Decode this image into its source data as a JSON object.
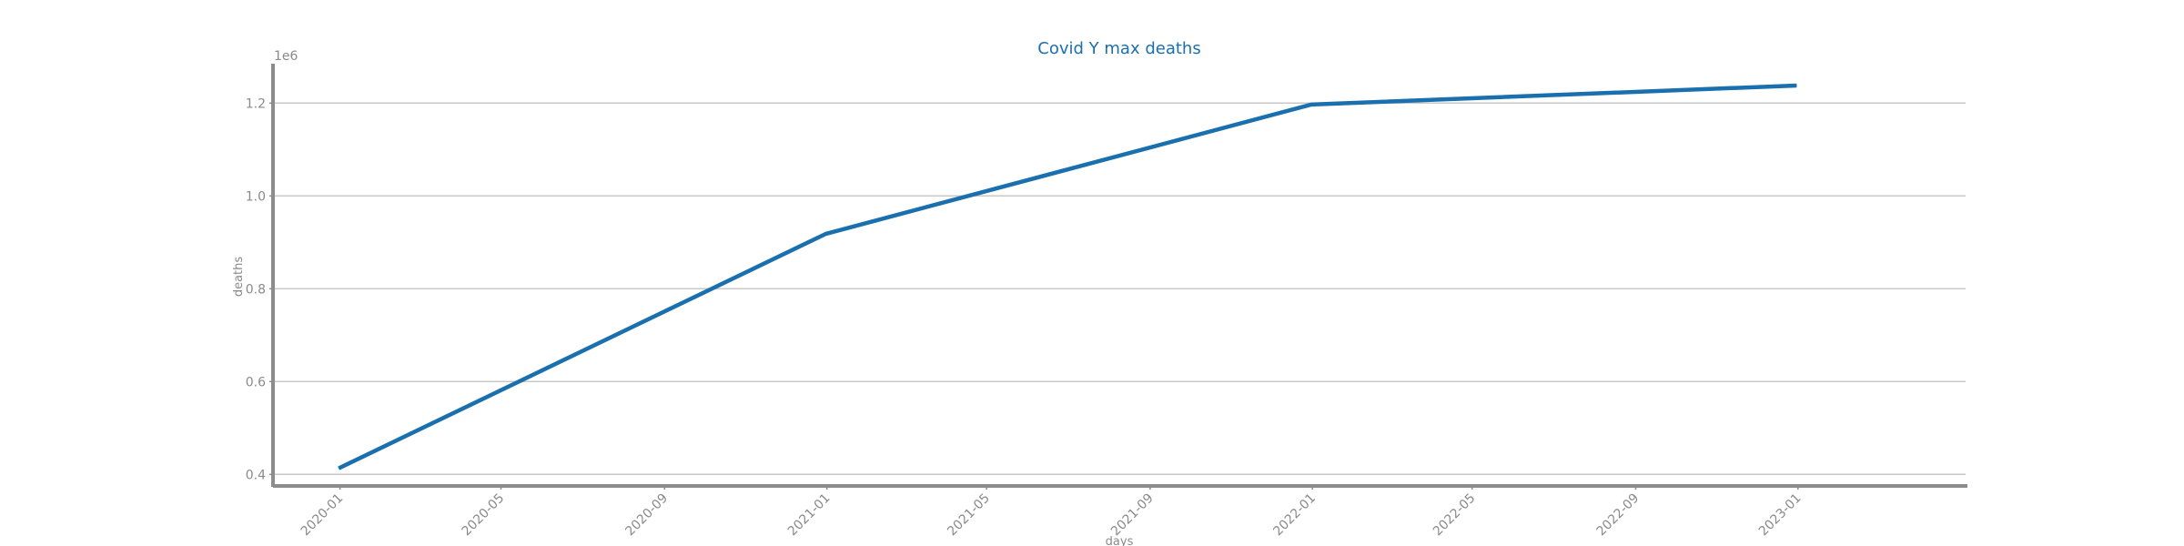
{
  "chart_data": {
    "type": "line",
    "title": "Covid Y max deaths",
    "xlabel": "days",
    "ylabel": "deaths",
    "y_offset_label": "1e6",
    "x_tick_labels": [
      "2020-01",
      "2020-05",
      "2020-09",
      "2021-01",
      "2021-05",
      "2021-09",
      "2022-01",
      "2022-05",
      "2022-09",
      "2023-01"
    ],
    "y_tick_labels": [
      "0.4",
      "0.6",
      "0.8",
      "1.0",
      "1.2"
    ],
    "y_ticks": [
      0.4,
      0.6,
      0.8,
      1.0,
      1.2
    ],
    "x_range": [
      "2019-11-13",
      "2023-05-07"
    ],
    "ylim": [
      0.375,
      1.285
    ],
    "grid": "horizontal",
    "series": [
      {
        "color": "#1a6fae",
        "points": [
          {
            "x": "2019-12-31",
            "y": 0.413
          },
          {
            "x": "2020-12-31",
            "y": 0.918
          },
          {
            "x": "2021-12-31",
            "y": 1.197
          },
          {
            "x": "2022-12-31",
            "y": 1.238
          }
        ]
      }
    ]
  }
}
